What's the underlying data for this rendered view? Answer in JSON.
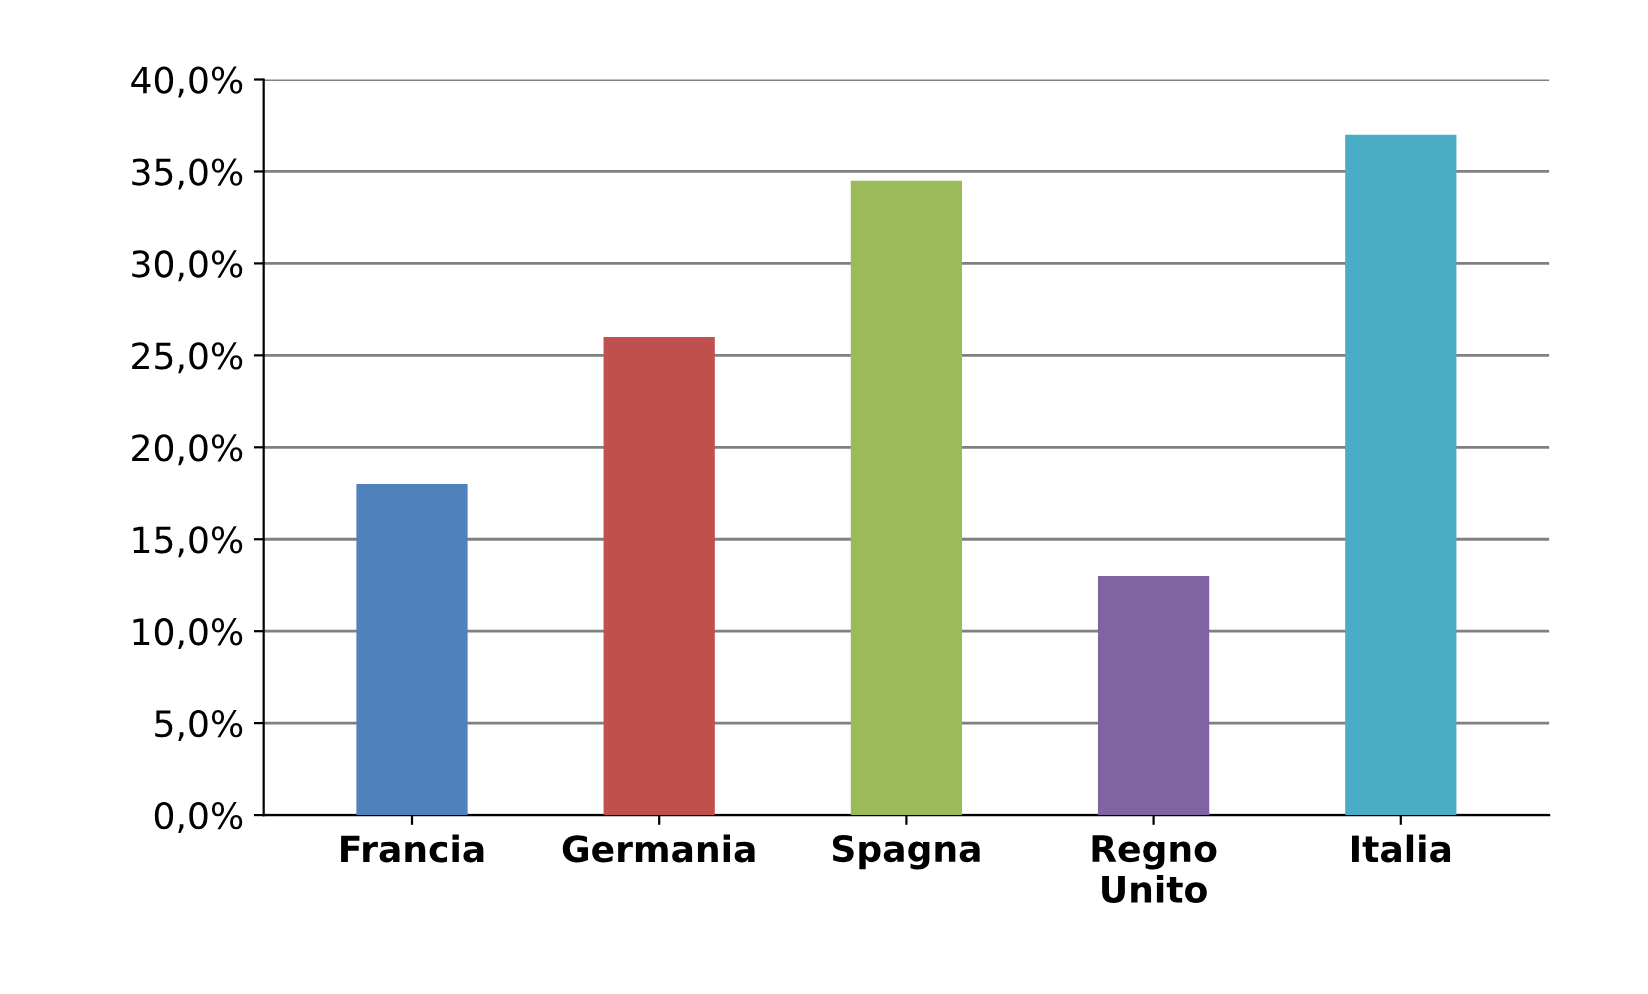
{
  "chart_data": {
    "type": "bar",
    "categories": [
      "Francia",
      "Germania",
      "Spagna",
      "Regno\nUnito",
      "Italia"
    ],
    "values": [
      18,
      26,
      34.5,
      13,
      37
    ],
    "colors": [
      "#4f81bd",
      "#c0504d",
      "#9bbb59",
      "#8064a2",
      "#4bacc6"
    ],
    "ylim": [
      0,
      40
    ],
    "yticks": [
      {
        "value": 0,
        "label": "0,0%"
      },
      {
        "value": 5,
        "label": "5,0%"
      },
      {
        "value": 10,
        "label": "10,0%"
      },
      {
        "value": 15,
        "label": "15,0%"
      },
      {
        "value": 20,
        "label": "20,0%"
      },
      {
        "value": 25,
        "label": "25,0%"
      },
      {
        "value": 30,
        "label": "30,0%"
      },
      {
        "value": 35,
        "label": "35,0%"
      },
      {
        "value": 40,
        "label": "40,0%"
      }
    ],
    "grid": "y"
  }
}
